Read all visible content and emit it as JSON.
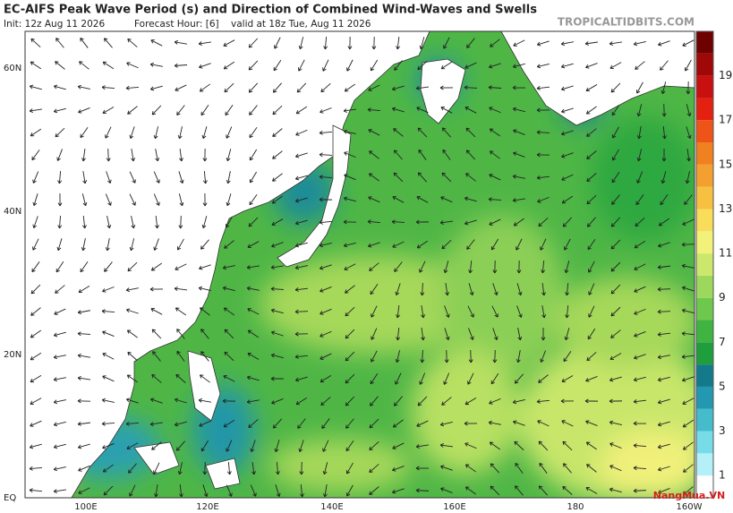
{
  "header": {
    "title": "EC-AIFS Peak Wave Period (s) and Direction of Combined Wind-Waves and Swells",
    "init": "Init: 12z Aug 11 2026",
    "forecast_hour": "Forecast Hour: [6]",
    "valid": "valid at 18z Tue, Aug 11 2026",
    "site": "TROPICALTIDBITS.COM"
  },
  "map": {
    "lat_labels": [
      "60N",
      "40N",
      "20N",
      "EQ"
    ],
    "lon_labels": [
      "100E",
      "120E",
      "140E",
      "160E",
      "180",
      "160W"
    ]
  },
  "colorbar": {
    "lim": [
      0,
      21
    ],
    "labels": [
      1,
      3,
      5,
      7,
      9,
      11,
      13,
      15,
      17,
      19
    ],
    "colors": [
      "#ffffff",
      "#b4f0f8",
      "#78dce8",
      "#44bccc",
      "#2398b0",
      "#137a8c",
      "#1e9e3c",
      "#3fb440",
      "#6ec84e",
      "#9cd85c",
      "#cce86c",
      "#f2f27a",
      "#f8dc5a",
      "#f8c040",
      "#f4a030",
      "#f08020",
      "#ee5418",
      "#e42010",
      "#c81010",
      "#a00808",
      "#6e0000"
    ]
  },
  "watermark": "NangMua.VN"
}
